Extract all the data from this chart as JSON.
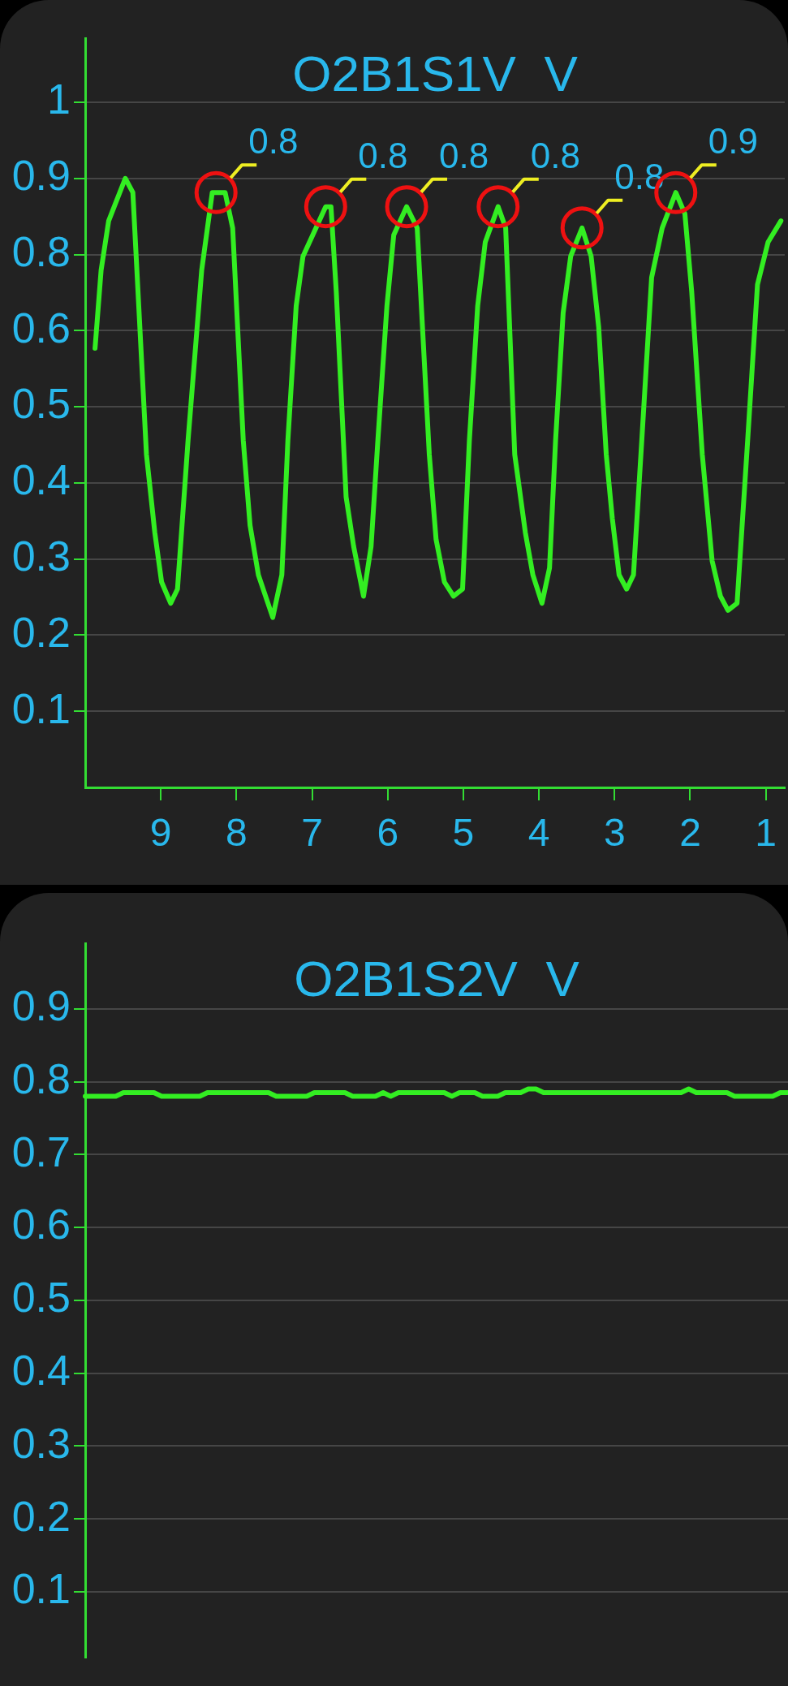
{
  "chart_data": [
    {
      "type": "line",
      "title": "O2B1S1V  V",
      "series": [
        {
          "color": "#33ee22",
          "x": [
            9.87,
            9.79,
            9.69,
            9.47,
            9.37,
            9.19,
            9.08,
            8.99,
            8.87,
            8.78,
            8.64,
            8.46,
            8.32,
            8.27,
            8.15,
            8.05,
            7.91,
            7.82,
            7.71,
            7.52,
            7.4,
            7.32,
            7.21,
            7.12,
            6.82,
            6.75,
            6.68,
            6.55,
            6.45,
            6.32,
            6.22,
            6.13,
            6.01,
            5.92,
            5.75,
            5.61,
            5.45,
            5.36,
            5.25,
            5.13,
            5.01,
            4.92,
            4.81,
            4.71,
            4.54,
            4.44,
            4.32,
            4.18,
            4.08,
            3.96,
            3.86,
            3.78,
            3.68,
            3.58,
            3.43,
            3.31,
            3.21,
            3.11,
            3.03,
            2.94,
            2.84,
            2.75,
            2.64,
            2.51,
            2.37,
            2.19,
            2.07,
            1.98,
            1.84,
            1.71,
            1.6,
            1.5,
            1.38,
            1.24,
            1.11,
            0.97,
            0.8
          ],
          "values": [
            0.62,
            0.73,
            0.8,
            0.86,
            0.84,
            0.47,
            0.36,
            0.29,
            0.26,
            0.28,
            0.49,
            0.73,
            0.84,
            0.84,
            0.84,
            0.79,
            0.49,
            0.37,
            0.3,
            0.24,
            0.3,
            0.49,
            0.68,
            0.75,
            0.82,
            0.82,
            0.7,
            0.41,
            0.34,
            0.27,
            0.34,
            0.49,
            0.68,
            0.78,
            0.82,
            0.79,
            0.47,
            0.35,
            0.29,
            0.27,
            0.28,
            0.49,
            0.68,
            0.77,
            0.82,
            0.79,
            0.47,
            0.36,
            0.3,
            0.26,
            0.31,
            0.49,
            0.67,
            0.75,
            0.79,
            0.75,
            0.65,
            0.47,
            0.38,
            0.3,
            0.28,
            0.3,
            0.49,
            0.72,
            0.79,
            0.84,
            0.81,
            0.7,
            0.47,
            0.32,
            0.27,
            0.25,
            0.26,
            0.49,
            0.71,
            0.77,
            0.8
          ]
        }
      ],
      "xlim": [
        10,
        0.75
      ],
      "xticks": [
        9,
        8,
        7,
        6,
        5,
        4,
        3,
        2,
        1
      ],
      "ylim": [
        0,
        1.058
      ],
      "yticks": [
        {
          "value": 0.1075,
          "label": "0.1"
        },
        {
          "value": 0.215,
          "label": "0.2"
        },
        {
          "value": 0.3225,
          "label": "0.3"
        },
        {
          "value": 0.43,
          "label": "0.4"
        },
        {
          "value": 0.5375,
          "label": "0.5"
        },
        {
          "value": 0.645,
          "label": "0.6"
        },
        {
          "value": 0.7525,
          "label": "0.8"
        },
        {
          "value": 0.86,
          "label": "0.9"
        },
        {
          "value": 0.9675,
          "label": "1"
        }
      ],
      "grid": "y",
      "legend": false,
      "marker": "none",
      "line_style": "solid",
      "annotations": [
        {
          "text": "0.8",
          "x": 8.27,
          "y": 0.84
        },
        {
          "text": "0.8",
          "x": 6.82,
          "y": 0.82
        },
        {
          "text": "0.8",
          "x": 5.75,
          "y": 0.82
        },
        {
          "text": "0.8",
          "x": 4.54,
          "y": 0.82
        },
        {
          "text": "0.8",
          "x": 3.43,
          "y": 0.79
        },
        {
          "text": "0.9",
          "x": 2.19,
          "y": 0.84
        }
      ]
    },
    {
      "type": "line",
      "title": "O2B1S2V  V",
      "categories": [
        null,
        null,
        null,
        null,
        null,
        null,
        null,
        null,
        null,
        null,
        null,
        null,
        null,
        null,
        null,
        null,
        null,
        null,
        null,
        null,
        null,
        null,
        null,
        null,
        null,
        null,
        null,
        null,
        null,
        null,
        null,
        null,
        null,
        null,
        null,
        null,
        null,
        null,
        null,
        null,
        null,
        null,
        null,
        null,
        null,
        null,
        null,
        null,
        null,
        null,
        null,
        null,
        null,
        null,
        null,
        null,
        null,
        null,
        null,
        null,
        null,
        null,
        null,
        null,
        null,
        null,
        null,
        null,
        null,
        null,
        null,
        null,
        null,
        null,
        null,
        null,
        null,
        null,
        null,
        null,
        null,
        null,
        null,
        null,
        null,
        null,
        null,
        null,
        null,
        null,
        null,
        null,
        null
      ],
      "series": [
        {
          "color": "#33ee22",
          "values": [
            0.78,
            0.78,
            0.78,
            0.78,
            0.78,
            0.785,
            0.785,
            0.785,
            0.785,
            0.785,
            0.78,
            0.78,
            0.78,
            0.78,
            0.78,
            0.78,
            0.785,
            0.785,
            0.785,
            0.785,
            0.785,
            0.785,
            0.785,
            0.785,
            0.785,
            0.78,
            0.78,
            0.78,
            0.78,
            0.78,
            0.785,
            0.785,
            0.785,
            0.785,
            0.785,
            0.78,
            0.78,
            0.78,
            0.78,
            0.785,
            0.78,
            0.785,
            0.785,
            0.785,
            0.785,
            0.785,
            0.785,
            0.785,
            0.78,
            0.785,
            0.785,
            0.785,
            0.78,
            0.78,
            0.78,
            0.785,
            0.785,
            0.785,
            0.79,
            0.79,
            0.785,
            0.785,
            0.785,
            0.785,
            0.785,
            0.785,
            0.785,
            0.785,
            0.785,
            0.785,
            0.785,
            0.785,
            0.785,
            0.785,
            0.785,
            0.785,
            0.785,
            0.785,
            0.785,
            0.79,
            0.785,
            0.785,
            0.785,
            0.785,
            0.785,
            0.78,
            0.78,
            0.78,
            0.78,
            0.78,
            0.78,
            0.785,
            0.785
          ]
        }
      ],
      "ylim": [
        0.01,
        0.99
      ],
      "yticks": [
        0.1,
        0.2,
        0.3,
        0.4,
        0.5,
        0.6,
        0.7,
        0.8,
        0.9
      ],
      "grid": "y",
      "legend": false,
      "marker": "none",
      "line_style": "solid",
      "tick_labels": "y"
    }
  ]
}
